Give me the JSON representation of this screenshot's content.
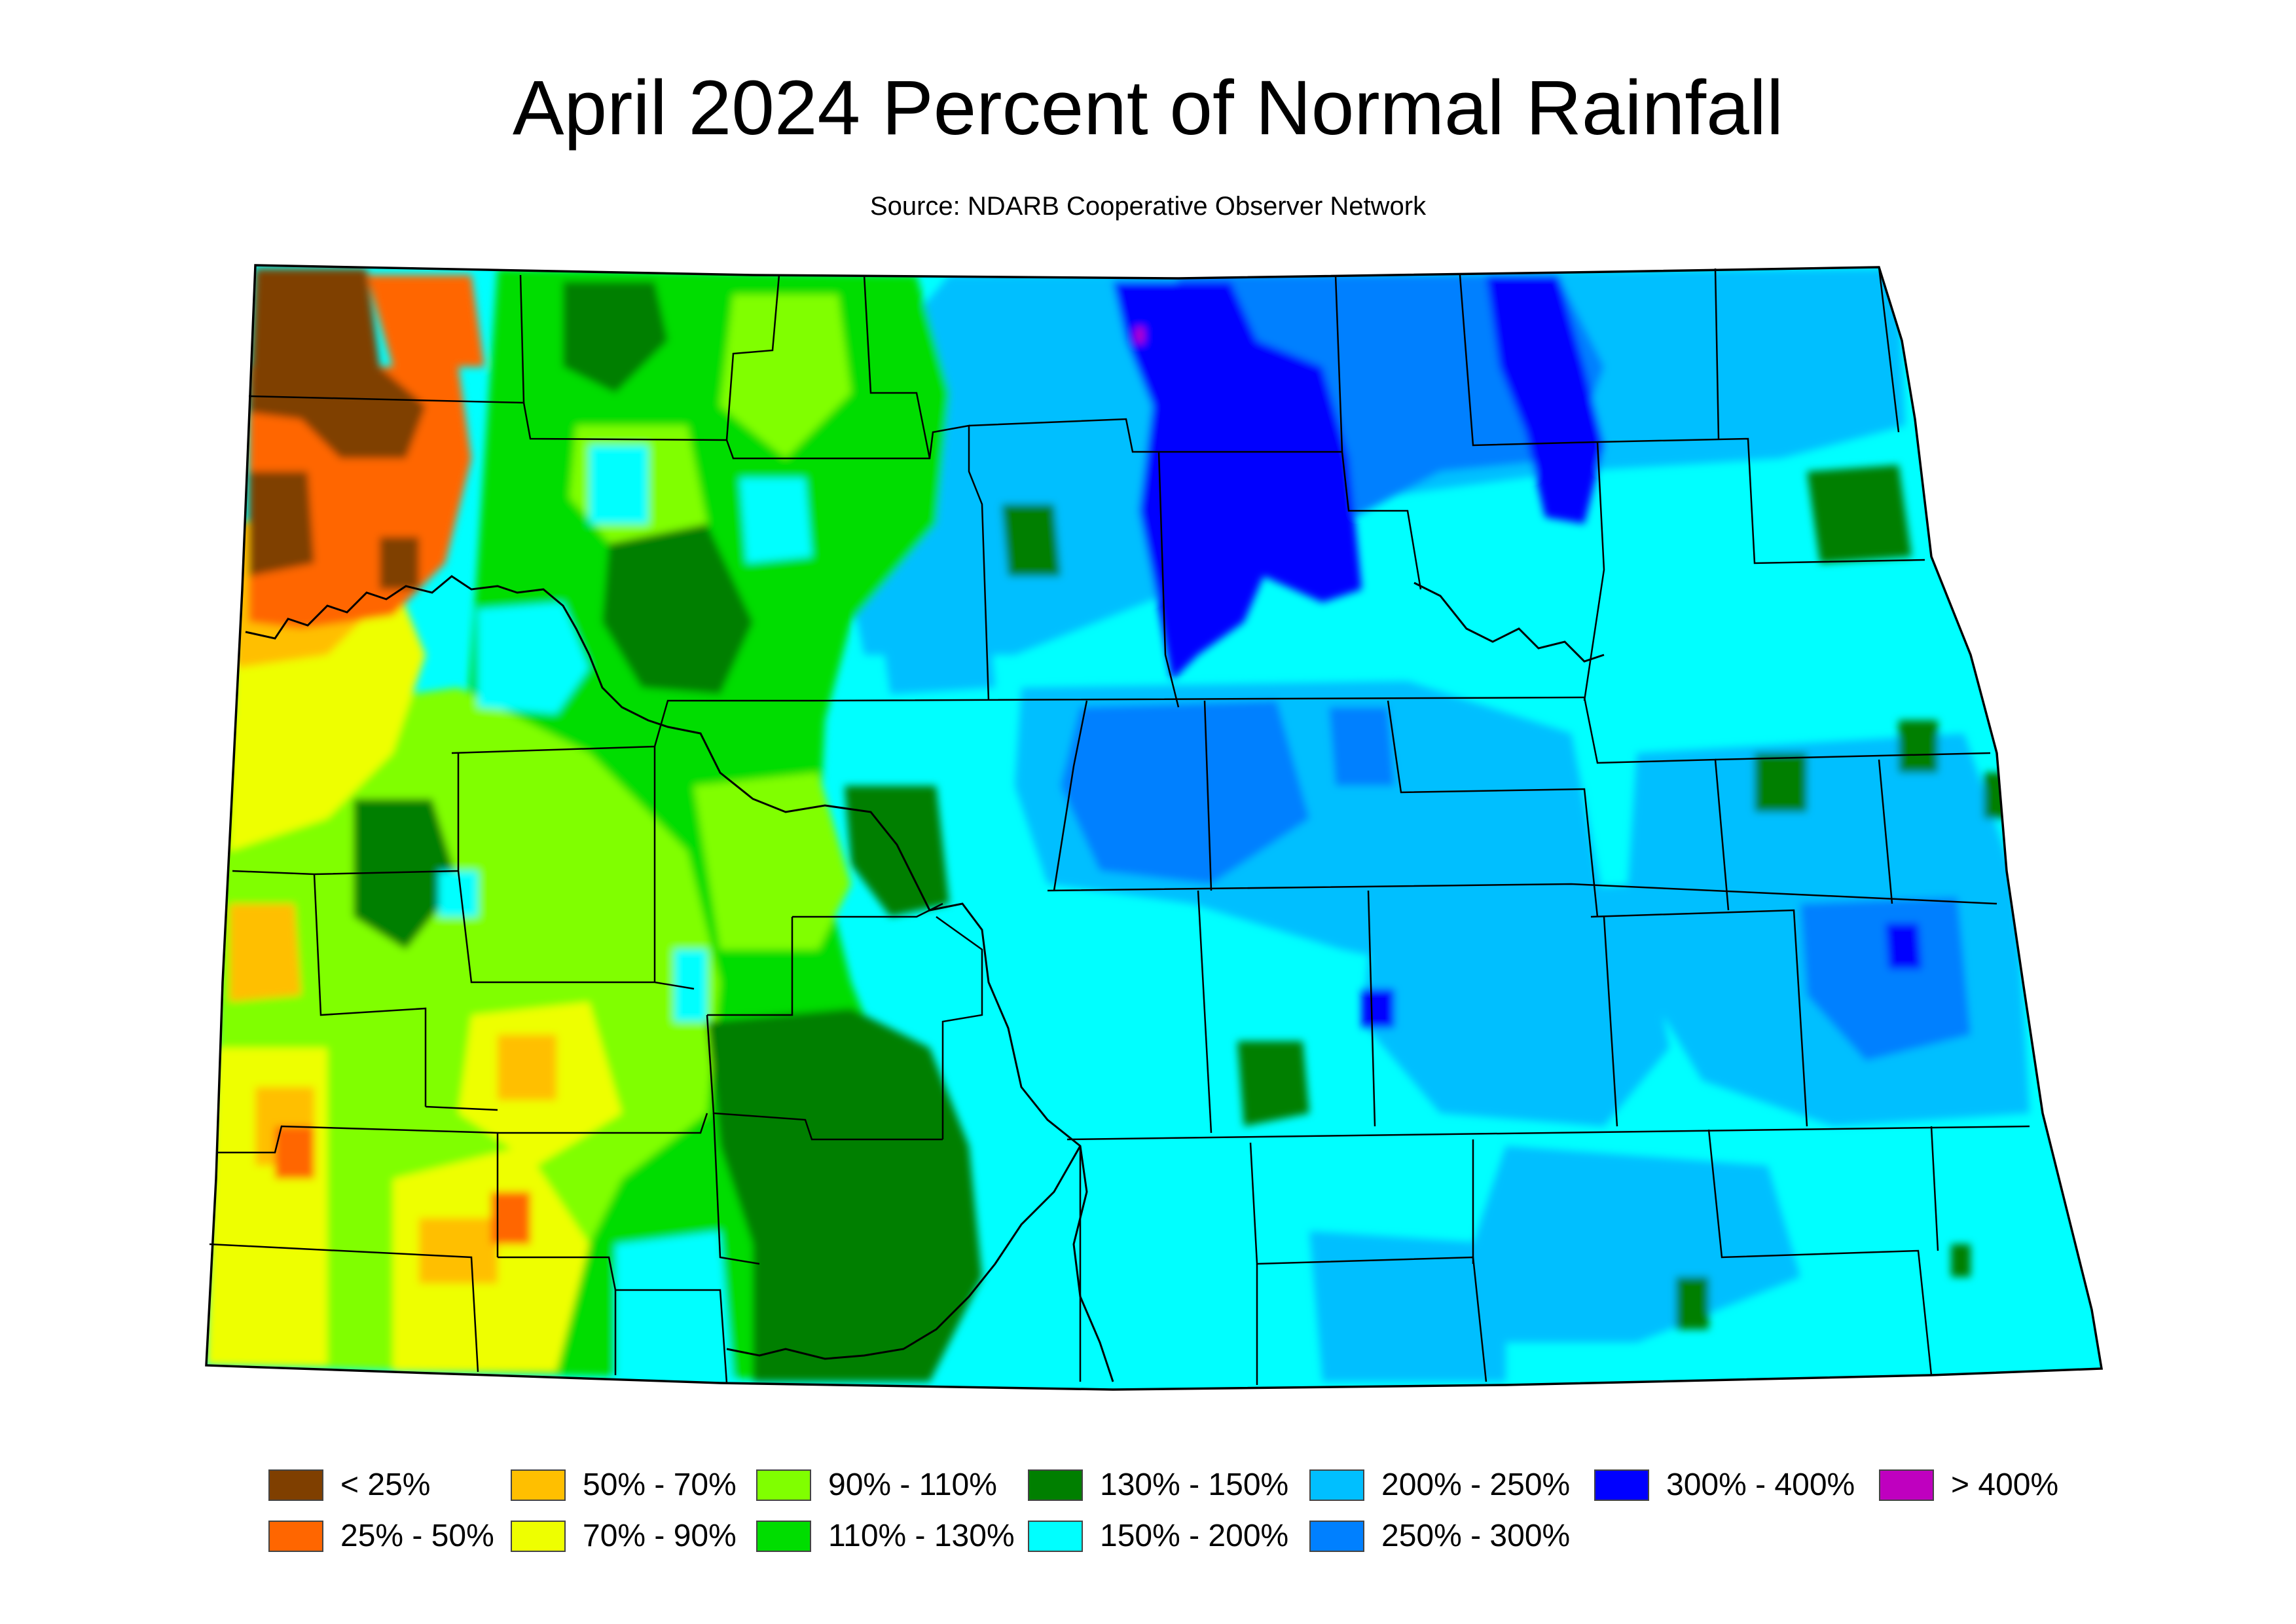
{
  "title": "April 2024 Percent of Normal Rainfall",
  "subtitle": "Source: NDARB Cooperative Observer Network",
  "legend": [
    {
      "label": "< 25%",
      "color": "#7f3f00"
    },
    {
      "label": "25% - 50%",
      "color": "#ff6600"
    },
    {
      "label": "50% - 70%",
      "color": "#ffbf00"
    },
    {
      "label": "70% - 90%",
      "color": "#eeff00"
    },
    {
      "label": "90% - 110%",
      "color": "#80ff00"
    },
    {
      "label": "110% - 130%",
      "color": "#00dd00"
    },
    {
      "label": "130% - 150%",
      "color": "#007f00"
    },
    {
      "label": "150% - 200%",
      "color": "#00ffff"
    },
    {
      "label": "200% - 250%",
      "color": "#00bfff"
    },
    {
      "label": "250% - 300%",
      "color": "#0080ff"
    },
    {
      "label": "300% - 400%",
      "color": "#0000ff"
    },
    {
      "label": "> 400%",
      "color": "#bf00bf"
    }
  ]
}
